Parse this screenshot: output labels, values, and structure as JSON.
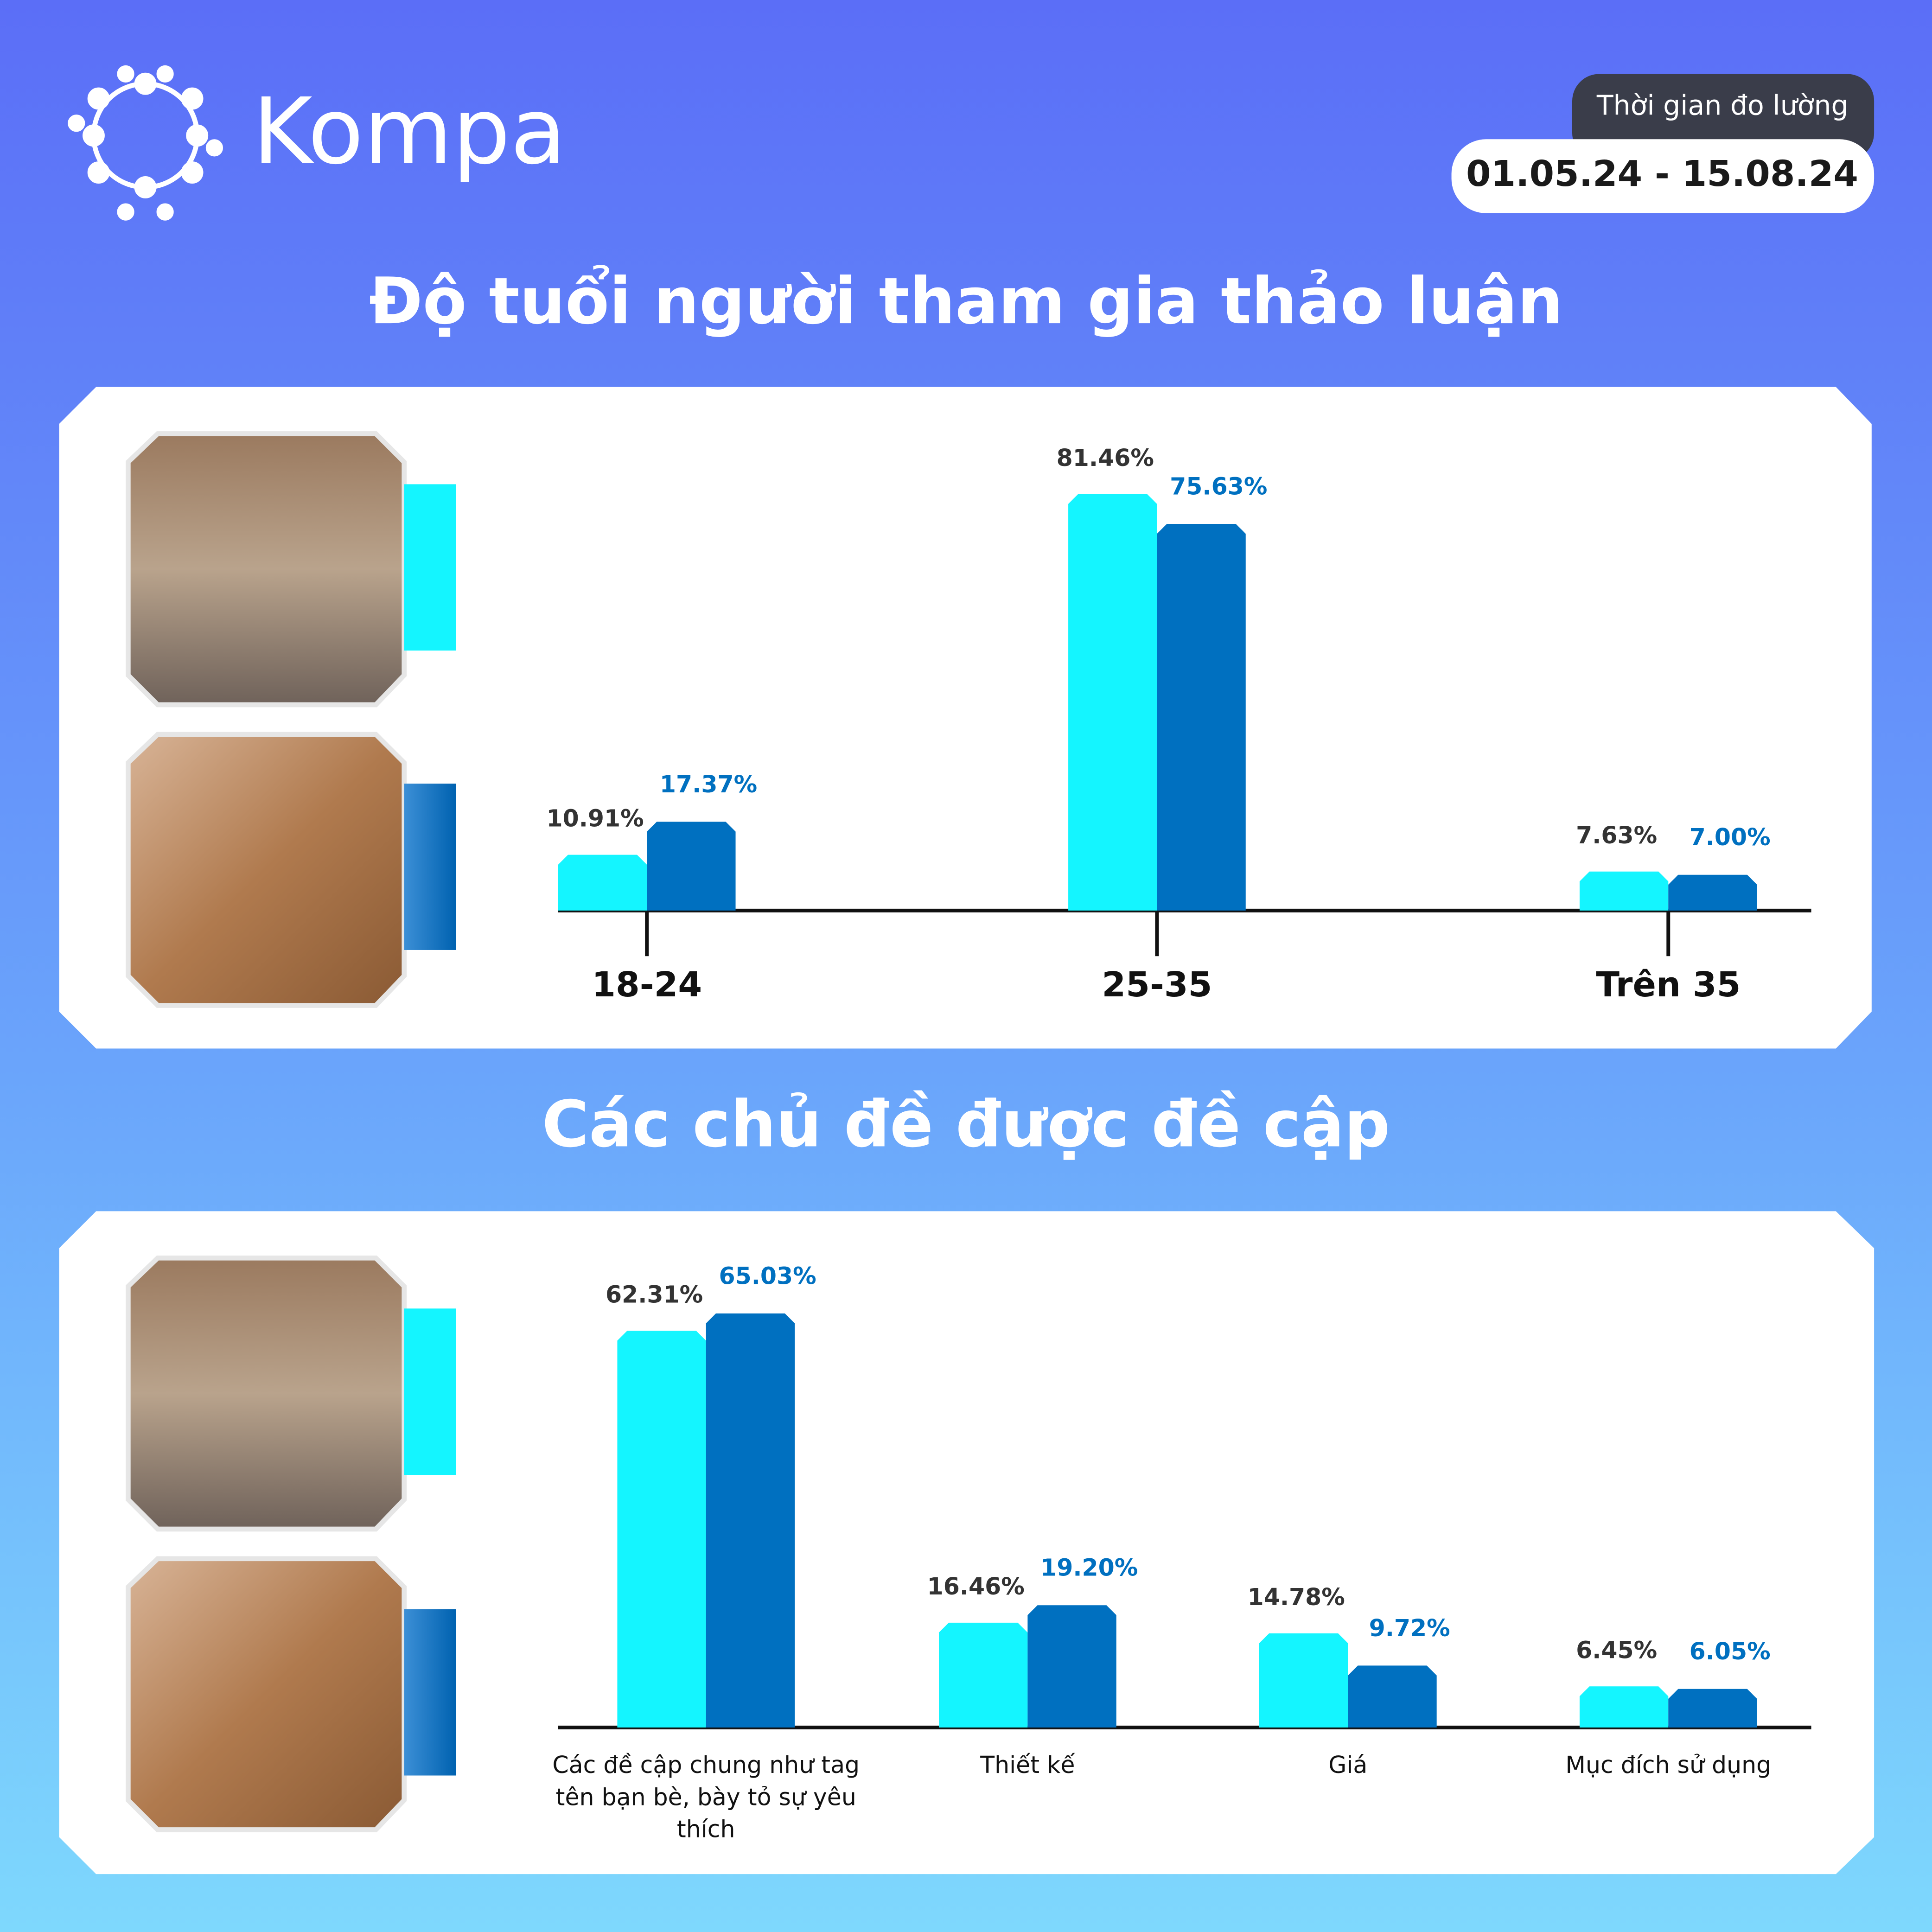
{
  "header": {
    "brand": "Kompa",
    "period_label": "Thời gian đo lường",
    "period": "01.05.24 - 15.08.24"
  },
  "chart_data": [
    {
      "type": "bar",
      "title": "Độ tuổi người tham gia thảo luận",
      "categories": [
        "18-24",
        "25-35",
        "Trên 35"
      ],
      "series": [
        {
          "color": "#14f5ff",
          "label_color": "#333333",
          "values": [
            10.91,
            81.46,
            7.63
          ],
          "value_labels": [
            "10.91%",
            "81.46%",
            "7.63%"
          ]
        },
        {
          "color": "#0070c0",
          "label_color": "#0070c0",
          "values": [
            17.37,
            75.63,
            7.0
          ],
          "value_labels": [
            "17.37%",
            "75.63%",
            "7.00%"
          ]
        }
      ]
    },
    {
      "type": "bar",
      "title": "Các chủ đề được đề cập",
      "categories": [
        "Các đề cập chung như tag tên bạn bè, bày tỏ sự yêu thích",
        "Thiết kế",
        "Giá",
        "Mục đích sử dụng"
      ],
      "series": [
        {
          "color": "#14f5ff",
          "label_color": "#333333",
          "values": [
            62.31,
            16.46,
            14.78,
            6.45
          ],
          "value_labels": [
            "62.31%",
            "16.46%",
            "14.78%",
            "6.45%"
          ]
        },
        {
          "color": "#0070c0",
          "label_color": "#0070c0",
          "values": [
            65.03,
            19.2,
            9.72,
            6.05
          ],
          "value_labels": [
            "65.03%",
            "19.20%",
            "9.72%",
            "6.05%"
          ]
        }
      ]
    }
  ]
}
